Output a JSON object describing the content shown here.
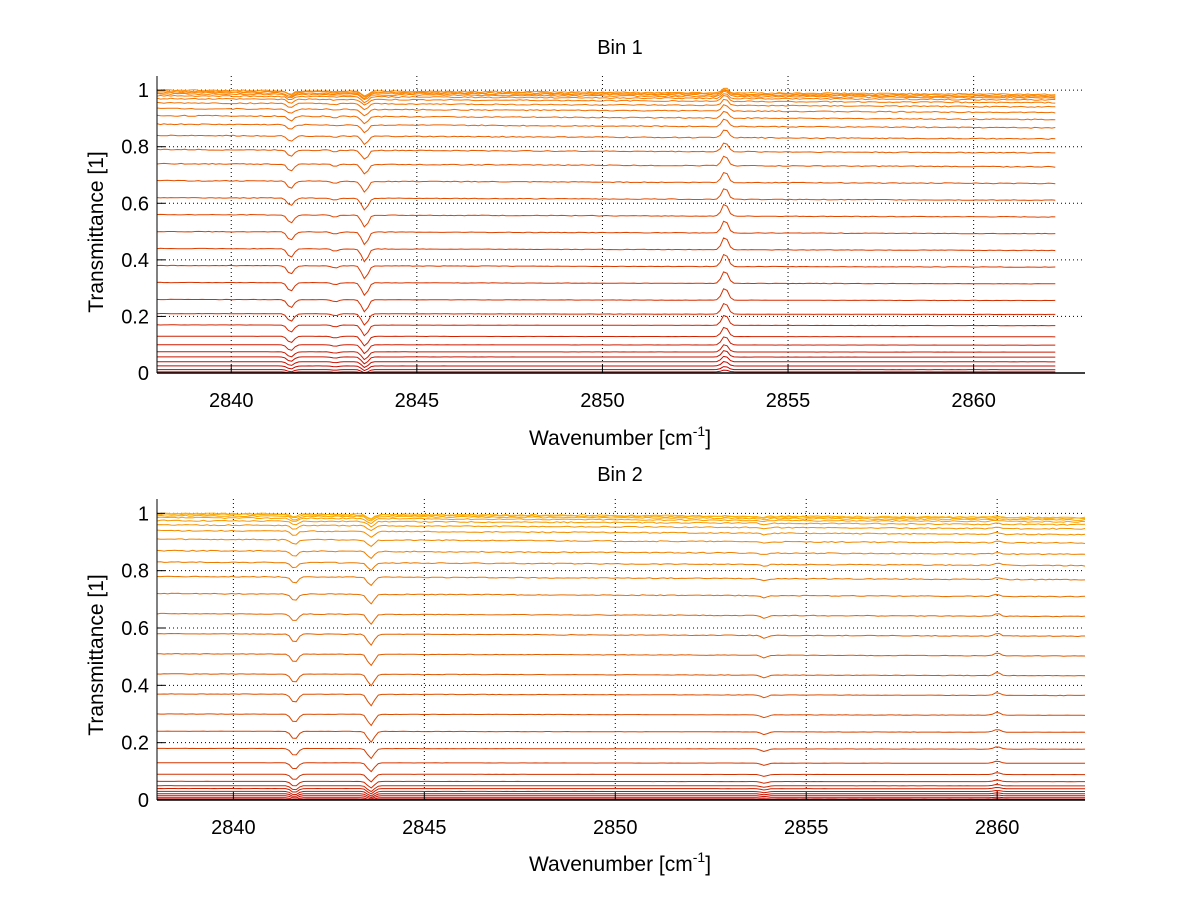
{
  "chart_data": [
    {
      "type": "line",
      "title": "Bin 1",
      "xlabel": "Wavenumber [cm",
      "xlabel_sup": "-1",
      "xlabel_end": "]",
      "ylabel": "Transmittance [1]",
      "xlim": [
        2838,
        2863
      ],
      "ylim": [
        0,
        1.05
      ],
      "xticks": [
        2840,
        2845,
        2850,
        2855,
        2860
      ],
      "xtick_labels": [
        "2840",
        "2845",
        "2850",
        "2855",
        "2860"
      ],
      "yticks": [
        0,
        0.2,
        0.4,
        0.6,
        0.8,
        1
      ],
      "ytick_labels": [
        "0",
        "0.2",
        "0.4",
        "0.6",
        "0.8",
        "1"
      ],
      "grid": true,
      "x_start": 2838,
      "x_end": 2862.2,
      "series_levels": [
        0.004,
        0.012,
        0.025,
        0.04,
        0.057,
        0.075,
        0.1,
        0.13,
        0.17,
        0.21,
        0.26,
        0.32,
        0.38,
        0.44,
        0.5,
        0.56,
        0.62,
        0.68,
        0.74,
        0.79,
        0.84,
        0.88,
        0.91,
        0.935,
        0.955,
        0.97,
        0.98,
        0.987,
        0.992,
        0.996,
        1.0
      ],
      "absorption_lines": [
        {
          "x": 2841.6,
          "depth": 0.06
        },
        {
          "x": 2843.6,
          "depth": 0.09
        },
        {
          "x": 2842.8,
          "depth": 0.015
        },
        {
          "x": 2853.3,
          "depth": -0.09
        }
      ],
      "colors": {
        "low": "#c00000",
        "high": "#ff8c00"
      }
    },
    {
      "type": "line",
      "title": "Bin 2",
      "xlabel": "Wavenumber [cm",
      "xlabel_sup": "-1",
      "xlabel_end": "]",
      "ylabel": "Transmittance [1]",
      "xlim": [
        2838,
        2862.3
      ],
      "ylim": [
        0,
        1.05
      ],
      "xticks": [
        2840,
        2845,
        2850,
        2855,
        2860
      ],
      "xtick_labels": [
        "2840",
        "2845",
        "2850",
        "2855",
        "2860"
      ],
      "yticks": [
        0,
        0.2,
        0.4,
        0.6,
        0.8,
        1
      ],
      "ytick_labels": [
        "0",
        "0.2",
        "0.4",
        "0.6",
        "0.8",
        "1"
      ],
      "grid": true,
      "x_start": 2838,
      "x_end": 2862.3,
      "series_levels": [
        0.003,
        0.008,
        0.015,
        0.022,
        0.03,
        0.04,
        0.05,
        0.065,
        0.09,
        0.13,
        0.18,
        0.24,
        0.3,
        0.37,
        0.44,
        0.51,
        0.58,
        0.65,
        0.72,
        0.78,
        0.83,
        0.87,
        0.91,
        0.94,
        0.96,
        0.975,
        0.985,
        0.992,
        0.997,
        1.0
      ],
      "absorption_lines": [
        {
          "x": 2841.6,
          "depth": 0.06
        },
        {
          "x": 2843.6,
          "depth": 0.08
        },
        {
          "x": 2853.9,
          "depth": 0.02
        },
        {
          "x": 2860.0,
          "depth": -0.02
        }
      ],
      "colors": {
        "low": "#c00000",
        "high": "#ffb000"
      }
    }
  ]
}
